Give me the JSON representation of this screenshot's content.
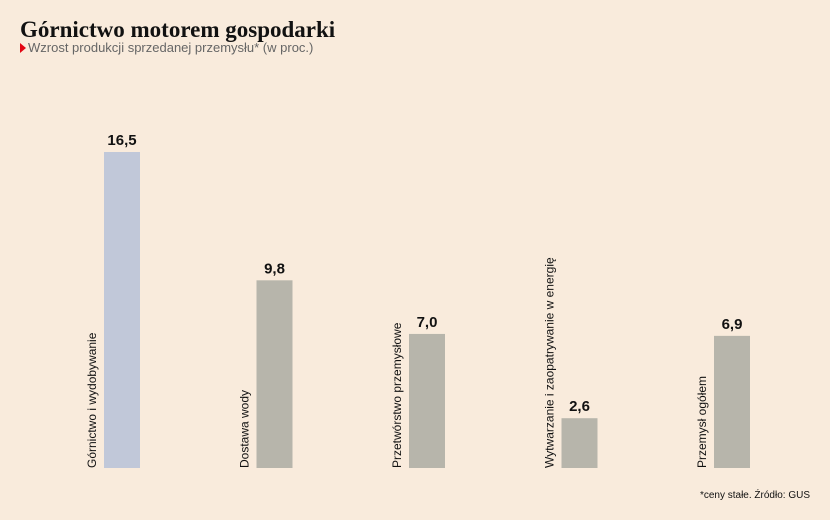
{
  "chart_data": {
    "type": "bar",
    "title": "Górnictwo motorem gospodarki",
    "subtitle": "Wzrost produkcji sprzedanej przemysłu* (w proc.)",
    "note": "*ceny stałe. Źródło: GUS",
    "categories": [
      "Górnictwo i wydobywanie",
      "Dostawa wody",
      "Przetwórstwo przemysłowe",
      "Wytwarzanie i zaopatrywanie w energię",
      "Przemysł ogółem"
    ],
    "values": [
      16.5,
      9.8,
      7.0,
      2.6,
      6.9
    ],
    "value_labels": [
      "16,5",
      "9,8",
      "7,0",
      "2,6",
      "6,9"
    ],
    "colors": [
      "#c1c8d9",
      "#b7b5ab",
      "#b7b5ab",
      "#b7b5ab",
      "#b7b5ab"
    ]
  }
}
